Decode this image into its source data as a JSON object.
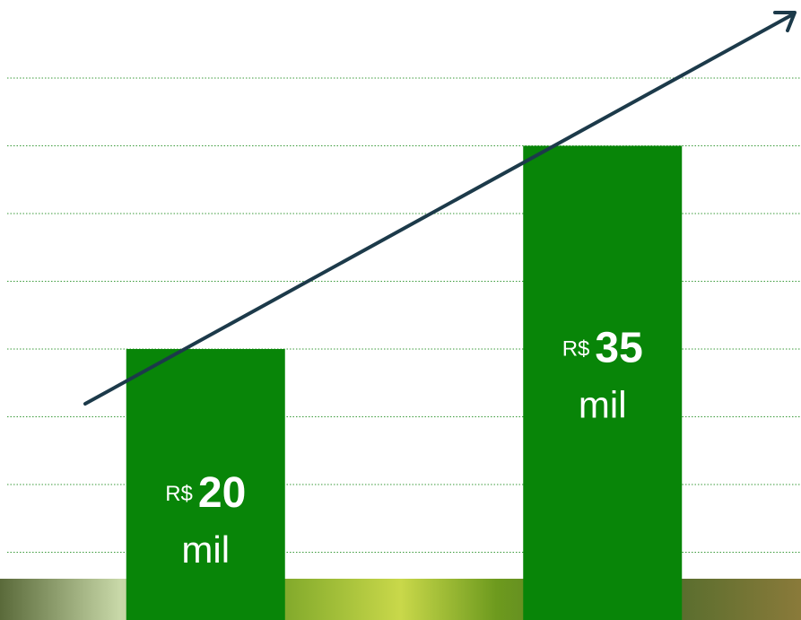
{
  "chart_data": {
    "type": "bar",
    "values": [
      20,
      35
    ],
    "value_prefix": "R$",
    "value_suffix": "mil",
    "color": "#088508",
    "ylim": [
      0,
      40
    ],
    "yticks": [
      5,
      10,
      15,
      20,
      25,
      30,
      35,
      40
    ],
    "grid": true
  }
}
